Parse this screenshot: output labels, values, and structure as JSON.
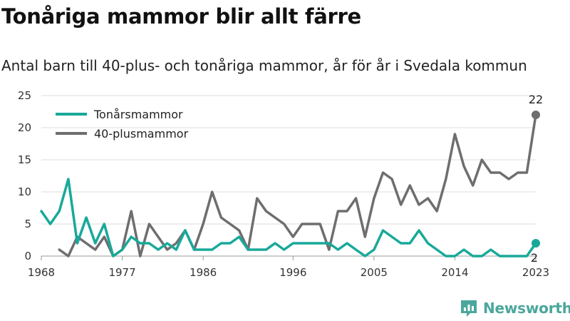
{
  "header": {
    "title": "Tonåriga mammor blir allt färre",
    "subtitle": "Antal barn till 40-plus- och tonåriga mammor, år för år i Svedala kommun"
  },
  "brand": {
    "name": "Newsworthy",
    "color": "#4aa79c"
  },
  "chart_data": {
    "type": "line",
    "x": [
      1968,
      1969,
      1970,
      1971,
      1972,
      1973,
      1974,
      1975,
      1976,
      1977,
      1978,
      1979,
      1980,
      1981,
      1982,
      1983,
      1984,
      1985,
      1986,
      1987,
      1988,
      1989,
      1990,
      1991,
      1992,
      1993,
      1994,
      1995,
      1996,
      1997,
      1998,
      1999,
      2000,
      2001,
      2002,
      2003,
      2004,
      2005,
      2006,
      2007,
      2008,
      2009,
      2010,
      2011,
      2012,
      2013,
      2014,
      2015,
      2016,
      2017,
      2018,
      2019,
      2020,
      2021,
      2022,
      2023
    ],
    "series": [
      {
        "name": "Tonårsmammor",
        "color": "#18a999",
        "values": [
          7,
          5,
          7,
          12,
          2,
          6,
          2,
          5,
          0,
          1,
          3,
          2,
          2,
          1,
          2,
          1,
          4,
          1,
          1,
          1,
          2,
          2,
          3,
          1,
          1,
          1,
          2,
          1,
          2,
          2,
          2,
          2,
          2,
          1,
          2,
          1,
          0,
          1,
          4,
          3,
          2,
          2,
          4,
          2,
          1,
          0,
          0,
          1,
          0,
          0,
          1,
          0,
          0,
          0,
          0,
          2
        ]
      },
      {
        "name": "40-plusmammor",
        "color": "#6e6e70",
        "values": [
          null,
          null,
          1,
          0,
          3,
          2,
          1,
          3,
          0,
          1,
          7,
          0,
          5,
          3,
          1,
          2,
          4,
          1,
          5,
          10,
          6,
          5,
          4,
          1,
          9,
          7,
          6,
          5,
          3,
          5,
          5,
          5,
          1,
          7,
          7,
          9,
          3,
          9,
          13,
          12,
          8,
          11,
          8,
          9,
          7,
          12,
          19,
          14,
          11,
          15,
          13,
          13,
          12,
          13,
          13,
          22
        ]
      }
    ],
    "xticks": [
      "1968",
      "1977",
      "1986",
      "1996",
      "2005",
      "2014",
      "2023"
    ],
    "yticks": [
      "0",
      "5",
      "10",
      "15",
      "20",
      "25"
    ],
    "ylim": [
      0,
      25
    ],
    "grid": "horizontal",
    "legend": "top-left",
    "end_labels": [
      "22",
      "2"
    ]
  }
}
